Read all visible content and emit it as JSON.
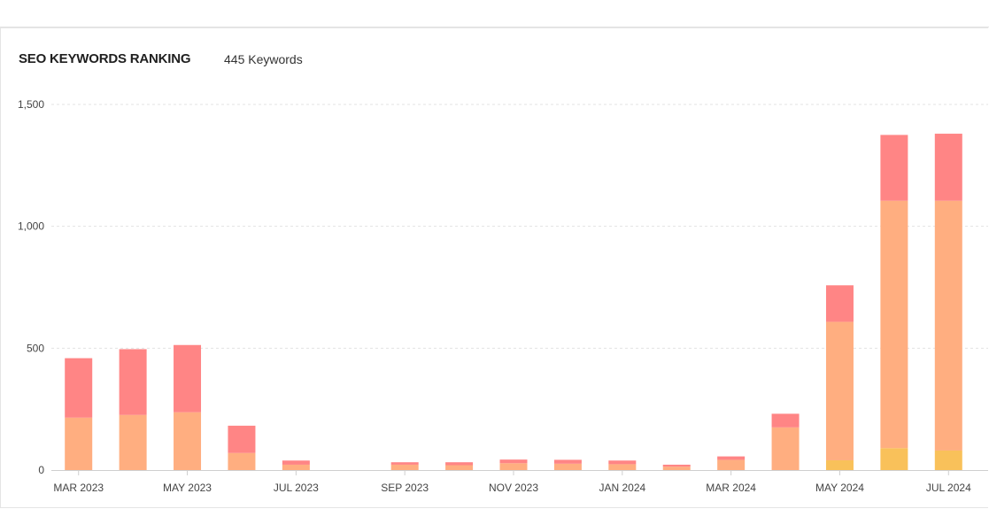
{
  "header": {
    "title": "SEO KEYWORDS RANKING",
    "keyword_count": "445 Keywords"
  },
  "chart_data": {
    "type": "bar",
    "stacked": true,
    "categories": [
      "Mar 2023",
      "Apr 2023",
      "May 2023",
      "Jun 2023",
      "Jul 2023",
      "Aug 2023",
      "Sep 2023",
      "Oct 2023",
      "Nov 2023",
      "Dec 2023",
      "Jan 2024",
      "Feb 2024",
      "Mar 2024",
      "Apr 2024",
      "May 2024",
      "Jun 2024",
      "Jul 2024"
    ],
    "x_tick_labels": [
      "MAR 2023",
      "",
      "MAY 2023",
      "",
      "JUL 2023",
      "",
      "SEP 2023",
      "",
      "NOV 2023",
      "",
      "JAN 2024",
      "",
      "MAR 2024",
      "",
      "MAY 2024",
      "",
      "JUL 2024"
    ],
    "series": [
      {
        "color": "#f9c15a",
        "values": [
          0,
          0,
          0,
          0,
          0,
          0,
          0,
          0,
          0,
          0,
          0,
          0,
          0,
          0,
          40,
          90,
          80
        ]
      },
      {
        "color": "#ffae80",
        "values": [
          215,
          226,
          237,
          70,
          22,
          0,
          22,
          20,
          28,
          26,
          24,
          14,
          42,
          175,
          568,
          1015,
          1025
        ]
      },
      {
        "color": "#ff8585",
        "values": [
          244,
          270,
          276,
          112,
          17,
          0,
          10,
          12,
          15,
          16,
          15,
          8,
          14,
          56,
          150,
          270,
          275
        ]
      }
    ],
    "y_ticks": [
      "0",
      "500",
      "1,000",
      "1,500"
    ],
    "ylim": [
      0,
      1500
    ],
    "grid": true
  }
}
